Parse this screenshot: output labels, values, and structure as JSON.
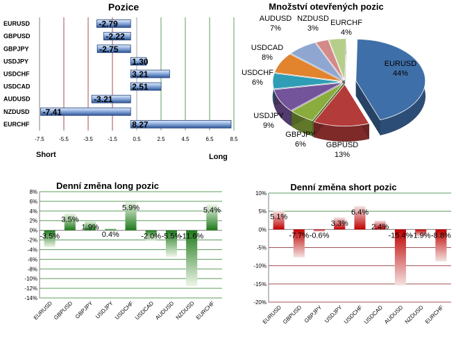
{
  "pozice": {
    "title": "Pozice",
    "categories": [
      "EURUSD",
      "GBPUSD",
      "GBPJPY",
      "USDJPY",
      "USDCHF",
      "USDCAD",
      "AUDUSD",
      "NZDUSD",
      "EURCHF"
    ],
    "values": [
      -2.79,
      -2.22,
      -2.75,
      1.3,
      3.21,
      2.51,
      -3.21,
      -7.41,
      8.27
    ],
    "value_labels": [
      "-2.79",
      "-2.22",
      "-2.75",
      "1.30",
      "3.21",
      "2.51",
      "-3.21",
      "-7.41",
      "8.27"
    ],
    "xticks": [
      "-7.5",
      "-5.5",
      "-3.5",
      "-1.5",
      "0.5",
      "2.5",
      "4.5",
      "6.5",
      "8.5"
    ],
    "short_label": "Short",
    "long_label": "Long"
  },
  "pie": {
    "title": "Množství otevřených pozic",
    "slices": [
      {
        "name": "EURUSD",
        "pct": "44%",
        "value": 44,
        "color": "#3f6fa8"
      },
      {
        "name": "GBPUSD",
        "pct": "13%",
        "value": 13,
        "color": "#b33c3a"
      },
      {
        "name": "GBPJPY",
        "pct": "6%",
        "value": 6,
        "color": "#8aac3e"
      },
      {
        "name": "USDJPY",
        "pct": "9%",
        "value": 9,
        "color": "#73539a"
      },
      {
        "name": "USDCHF",
        "pct": "6%",
        "value": 6,
        "color": "#2f9db5"
      },
      {
        "name": "USDCAD",
        "pct": "8%",
        "value": 8,
        "color": "#e2832e"
      },
      {
        "name": "AUDUSD",
        "pct": "7%",
        "value": 7,
        "color": "#8fa7d0"
      },
      {
        "name": "NZDUSD",
        "pct": "3%",
        "value": 3,
        "color": "#d48a89"
      },
      {
        "name": "EURCHF",
        "pct": "4%",
        "value": 4,
        "color": "#b5ce8a"
      }
    ]
  },
  "long_change": {
    "title": "Denní změna long pozic",
    "categories": [
      "EURUSD",
      "GBPUSD",
      "GBPJPY",
      "USDJPY",
      "USDCHF",
      "USDCAD",
      "AUDUSD",
      "NZDUSD",
      "EURCHF"
    ],
    "values": [
      -3.5,
      3.5,
      1.9,
      0.4,
      5.9,
      -2.0,
      -5.5,
      -11.6,
      5.4
    ],
    "value_labels": [
      "-3.5%",
      "3.5%",
      "1.9%",
      "0.4%",
      "5.9%",
      "-2.0%",
      "-5.5%",
      "-11.6%",
      "5.4%"
    ],
    "yticks": [
      "8%",
      "6%",
      "4%",
      "2%",
      "0%",
      "-2%",
      "-4%",
      "-6%",
      "-8%",
      "-10%",
      "-12%",
      "-14%"
    ],
    "ylim": [
      -14,
      8
    ]
  },
  "short_change": {
    "title": "Denní změna short pozic",
    "categories": [
      "EURUSD",
      "GBPUSD",
      "GBPJPY",
      "USDJPY",
      "USDCHF",
      "USDCAD",
      "AUDUSD",
      "NZDUSD",
      "EURCHF"
    ],
    "values": [
      5.1,
      -7.7,
      -0.6,
      3.3,
      6.4,
      2.4,
      -15.4,
      -1.9,
      -8.8
    ],
    "value_labels": [
      "5.1%",
      "-7.7%",
      "-0.6%",
      "3.3%",
      "6.4%",
      "2.4%",
      "-15.4%",
      "-1.9%",
      "-8.8%"
    ],
    "yticks": [
      "10%",
      "5%",
      "0%",
      "-5%",
      "-10%",
      "-15%",
      "-20%"
    ],
    "ylim": [
      -20,
      10
    ]
  },
  "chart_data": [
    {
      "type": "bar",
      "title": "Pozice",
      "orientation": "horizontal",
      "categories": [
        "EURUSD",
        "GBPUSD",
        "GBPJPY",
        "USDJPY",
        "USDCHF",
        "USDCAD",
        "AUDUSD",
        "NZDUSD",
        "EURCHF"
      ],
      "values": [
        -2.79,
        -2.22,
        -2.75,
        1.3,
        3.21,
        2.51,
        -3.21,
        -7.41,
        8.27
      ],
      "xlim": [
        -7.5,
        8.5
      ],
      "grid": true
    },
    {
      "type": "pie",
      "title": "Množství otevřených pozic",
      "labels": [
        "EURUSD",
        "GBPUSD",
        "GBPJPY",
        "USDJPY",
        "USDCHF",
        "USDCAD",
        "AUDUSD",
        "NZDUSD",
        "EURCHF"
      ],
      "values": [
        44,
        13,
        6,
        9,
        6,
        8,
        7,
        3,
        4
      ]
    },
    {
      "type": "bar",
      "title": "Denní změna long pozic",
      "categories": [
        "EURUSD",
        "GBPUSD",
        "GBPJPY",
        "USDJPY",
        "USDCHF",
        "USDCAD",
        "AUDUSD",
        "NZDUSD",
        "EURCHF"
      ],
      "values": [
        -3.5,
        3.5,
        1.9,
        0.4,
        5.9,
        -2.0,
        -5.5,
        -11.6,
        5.4
      ],
      "ylim": [
        -14,
        8
      ],
      "grid": true
    },
    {
      "type": "bar",
      "title": "Denní změna short pozic",
      "categories": [
        "EURUSD",
        "GBPUSD",
        "GBPJPY",
        "USDJPY",
        "USDCHF",
        "USDCAD",
        "AUDUSD",
        "NZDUSD",
        "EURCHF"
      ],
      "values": [
        5.1,
        -7.7,
        -0.6,
        3.3,
        6.4,
        2.4,
        -15.4,
        -1.9,
        -8.8
      ],
      "ylim": [
        -20,
        10
      ],
      "grid": true
    }
  ]
}
